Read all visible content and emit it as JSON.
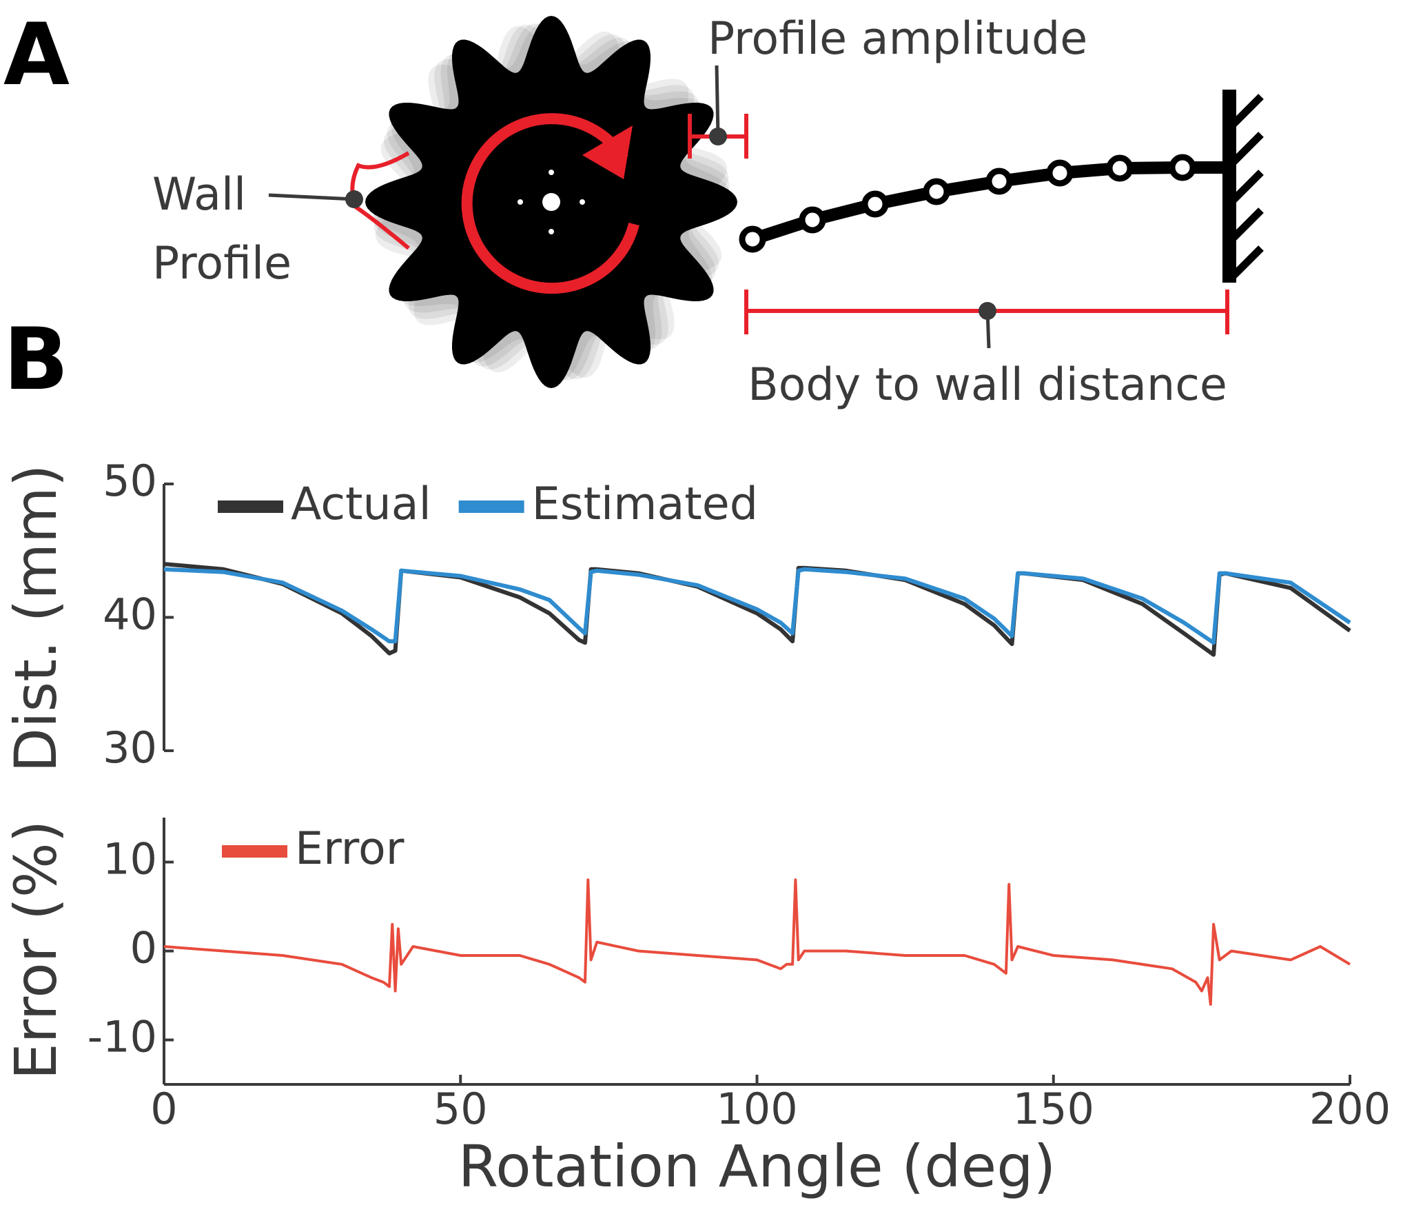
{
  "panels": {
    "a": {
      "label": "A",
      "amplitude_label": "Profile amplitude",
      "wall_label_1": "Wall",
      "wall_label_2": "Profile",
      "distance_label": "Body to wall distance"
    },
    "b": {
      "label": "B"
    }
  },
  "chart_data": [
    {
      "type": "line",
      "ylabel": "Dist. (mm)",
      "xlim": [
        0,
        200
      ],
      "ylim": [
        30,
        50
      ],
      "yticks": [
        30,
        40,
        50
      ],
      "x": [
        0,
        10,
        20,
        30,
        35,
        38,
        39,
        40,
        50,
        60,
        65,
        70,
        71,
        72,
        73,
        80,
        90,
        100,
        104,
        106,
        107,
        108,
        115,
        125,
        135,
        140,
        143,
        144,
        145,
        155,
        165,
        172,
        177,
        178,
        179,
        190,
        200
      ],
      "series": [
        {
          "name": "Actual",
          "color": "#333333",
          "values": [
            44,
            43.6,
            42.5,
            40.3,
            38.6,
            37.3,
            37.5,
            43.5,
            43,
            41.5,
            40.3,
            38.3,
            38.1,
            43.6,
            43.6,
            43.3,
            42.3,
            40.3,
            39.1,
            38.2,
            43.7,
            43.7,
            43.5,
            42.8,
            41,
            39.4,
            38,
            43.3,
            43.3,
            42.8,
            41,
            38.8,
            37.2,
            43.2,
            43.3,
            42.2,
            39
          ]
        },
        {
          "name": "Estimated",
          "color": "#2f8ccf",
          "values": [
            43.6,
            43.4,
            42.6,
            40.5,
            39.1,
            38.2,
            38.2,
            43.5,
            43.1,
            42.1,
            41.3,
            39.2,
            38.8,
            43.4,
            43.5,
            43.2,
            42.4,
            40.6,
            39.6,
            38.8,
            43.5,
            43.6,
            43.4,
            42.9,
            41.4,
            39.9,
            38.6,
            43.3,
            43.3,
            42.9,
            41.4,
            39.6,
            38.1,
            43.3,
            43.3,
            42.6,
            39.6
          ]
        }
      ]
    },
    {
      "type": "line",
      "ylabel": "Error (%)",
      "xlabel": "Rotation Angle (deg)",
      "xlim": [
        0,
        200
      ],
      "xticks": [
        0,
        50,
        100,
        150,
        200
      ],
      "ylim": [
        -15,
        15
      ],
      "yticks": [
        -10,
        0,
        10
      ],
      "x": [
        0,
        10,
        20,
        30,
        35,
        37,
        38,
        38.5,
        39,
        39.5,
        40,
        42,
        50,
        60,
        65,
        70,
        71,
        71.5,
        72,
        73,
        80,
        90,
        100,
        104,
        105,
        106,
        106.5,
        107,
        108,
        115,
        125,
        135,
        140,
        142,
        142.5,
        143,
        144,
        150,
        160,
        170,
        174,
        175,
        176,
        176.5,
        177,
        178,
        180,
        190,
        195,
        200
      ],
      "series": [
        {
          "name": "Error",
          "color": "#e84c3d",
          "values": [
            0.5,
            0,
            -0.5,
            -1.5,
            -3,
            -3.5,
            -4,
            3,
            -4.5,
            2.5,
            -1.5,
            0.5,
            -0.5,
            -0.5,
            -1.5,
            -3,
            -3.5,
            8,
            -1,
            1,
            0,
            -0.5,
            -1,
            -2,
            -1.5,
            -1.5,
            8,
            -1,
            0,
            0,
            -0.5,
            -0.5,
            -1.5,
            -2.5,
            7.5,
            -1,
            0.5,
            -0.5,
            -1,
            -2,
            -3.5,
            -4.5,
            -3,
            -6,
            3,
            -1,
            0,
            -1,
            0.5,
            -1.5
          ]
        }
      ]
    }
  ]
}
